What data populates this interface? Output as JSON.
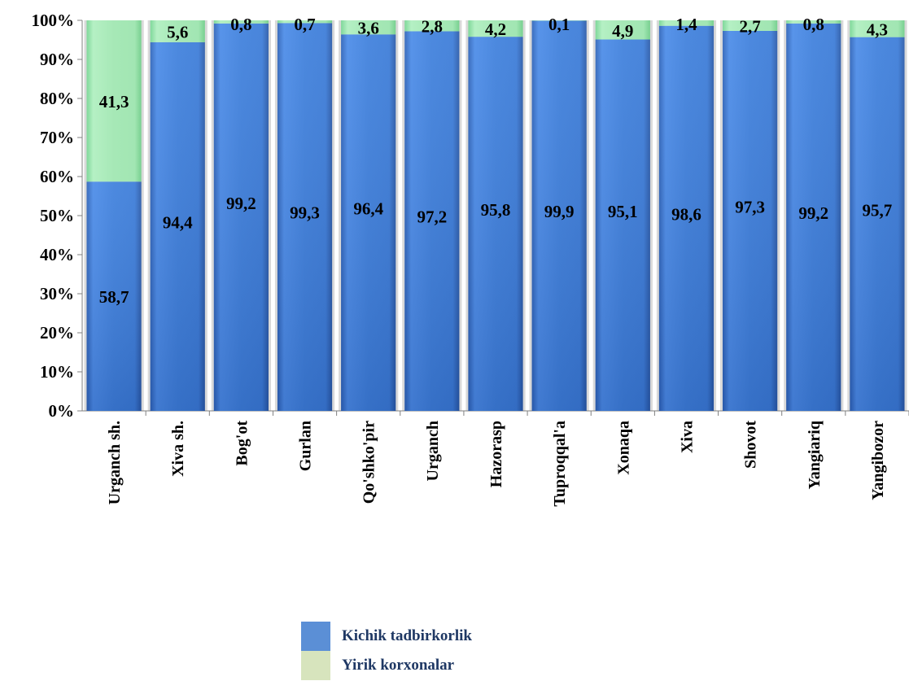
{
  "chart_data": {
    "type": "bar",
    "stacked": true,
    "percent_stacked": true,
    "categories": [
      "Urganch sh.",
      "Xiva sh.",
      "Bog'ot",
      "Gurlan",
      "Qo'shko'pir",
      "Urganch",
      "Hazorasp",
      "Tuproqqal'a",
      "Xonaqa",
      "Xiva",
      "Shovot",
      "Yangiariq",
      "Yangibozor"
    ],
    "series": [
      {
        "name": "Kichik tadbirkorlik",
        "color": "#3c7fd8",
        "values": [
          58.7,
          94.4,
          99.2,
          99.3,
          96.4,
          97.2,
          95.8,
          99.9,
          95.1,
          98.6,
          97.3,
          99.2,
          95.7
        ],
        "labels": [
          "58,7",
          "94,4",
          "99,2",
          "99,3",
          "96,4",
          "97,2",
          "95,8",
          "99,9",
          "95,1",
          "98,6",
          "97,3",
          "99,2",
          "95,7"
        ]
      },
      {
        "name": "Yirik korxonalar",
        "color": "#a8e8b8",
        "values": [
          41.3,
          5.6,
          0.8,
          0.7,
          3.6,
          2.8,
          4.2,
          0.1,
          4.9,
          1.4,
          2.7,
          0.8,
          4.3
        ],
        "labels": [
          "41,3",
          "5,6",
          "0,8",
          "0,7",
          "3,6",
          "2,8",
          "4,2",
          "0,1",
          "4,9",
          "1,4",
          "2,7",
          "0,8",
          "4,3"
        ]
      }
    ],
    "y_ticks": [
      "0%",
      "10%",
      "20%",
      "30%",
      "40%",
      "50%",
      "60%",
      "70%",
      "80%",
      "90%",
      "100%"
    ],
    "ylim": [
      0,
      100
    ],
    "grid": false,
    "legend_position": "bottom"
  },
  "legend": {
    "items": [
      {
        "label": "Kichik tadbirkorlik",
        "color": "#5b8fd6"
      },
      {
        "label": "Yirik korxonalar",
        "color": "#d7e4bd"
      }
    ]
  }
}
